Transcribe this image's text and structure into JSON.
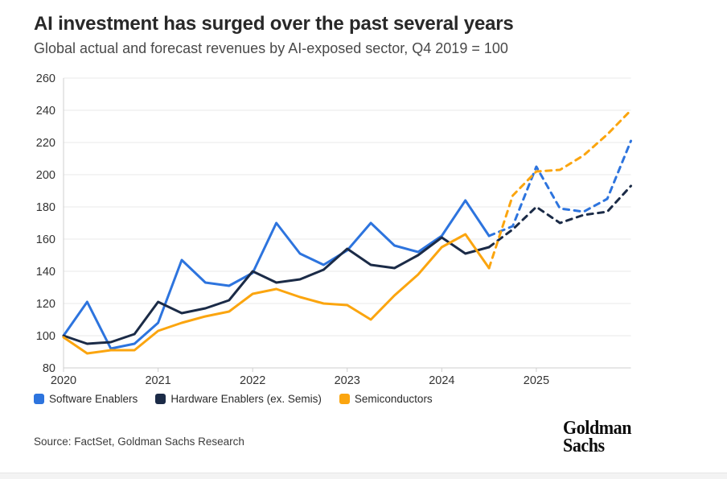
{
  "header": {
    "title": "AI investment has surged over the past several years",
    "subtitle": "Global actual and forecast revenues by AI-exposed sector, Q4 2019 = 100"
  },
  "chart_data": {
    "type": "line",
    "title": "AI investment has surged over the past several years",
    "subtitle": "Global actual and forecast revenues by AI-exposed sector, Q4 2019 = 100",
    "index_base": "Q4 2019 = 100",
    "x": [
      "2020 Q1",
      "2020 Q2",
      "2020 Q3",
      "2020 Q4",
      "2021 Q1",
      "2021 Q2",
      "2021 Q3",
      "2021 Q4",
      "2022 Q1",
      "2022 Q2",
      "2022 Q3",
      "2022 Q4",
      "2023 Q1",
      "2023 Q2",
      "2023 Q3",
      "2023 Q4",
      "2024 Q1",
      "2024 Q2",
      "2024 Q3",
      "2024 Q4",
      "2025 Q1",
      "2025 Q2",
      "2025 Q3",
      "2025 Q4",
      "2026 Q1"
    ],
    "x_ticks": [
      {
        "label": "2020",
        "index": 0
      },
      {
        "label": "2021",
        "index": 4
      },
      {
        "label": "2022",
        "index": 8
      },
      {
        "label": "2023",
        "index": 12
      },
      {
        "label": "2024",
        "index": 16
      },
      {
        "label": "2025",
        "index": 20
      }
    ],
    "ylim": [
      80,
      260
    ],
    "ytick_step": 20,
    "grid": "horizontal",
    "legend_position": "bottom-left",
    "forecast_start_index": 18,
    "line_style": {
      "actual": "solid",
      "forecast": "dashed"
    },
    "series": [
      {
        "name": "Software Enablers",
        "color": "#2d74de",
        "values": [
          100,
          121,
          92,
          95,
          108,
          147,
          133,
          131,
          139,
          170,
          151,
          144,
          153,
          170,
          156,
          152,
          162,
          184,
          162,
          168,
          205,
          179,
          177,
          185,
          221
        ]
      },
      {
        "name": "Hardware Enablers (ex. Semis)",
        "color": "#1b2b47",
        "values": [
          100,
          95,
          96,
          101,
          121,
          114,
          117,
          122,
          140,
          133,
          135,
          141,
          154,
          144,
          142,
          150,
          161,
          151,
          155,
          166,
          180,
          170,
          175,
          177,
          193
        ]
      },
      {
        "name": "Semiconductors",
        "color": "#fba50f",
        "values": [
          99,
          89,
          91,
          91,
          103,
          108,
          112,
          115,
          126,
          129,
          124,
          120,
          119,
          110,
          125,
          138,
          155,
          163,
          142,
          187,
          202,
          203,
          212,
          225,
          240
        ]
      }
    ]
  },
  "footer": {
    "source": "Source: FactSet, Goldman Sachs Research",
    "logo_line1": "Goldman",
    "logo_line2": "Sachs"
  }
}
